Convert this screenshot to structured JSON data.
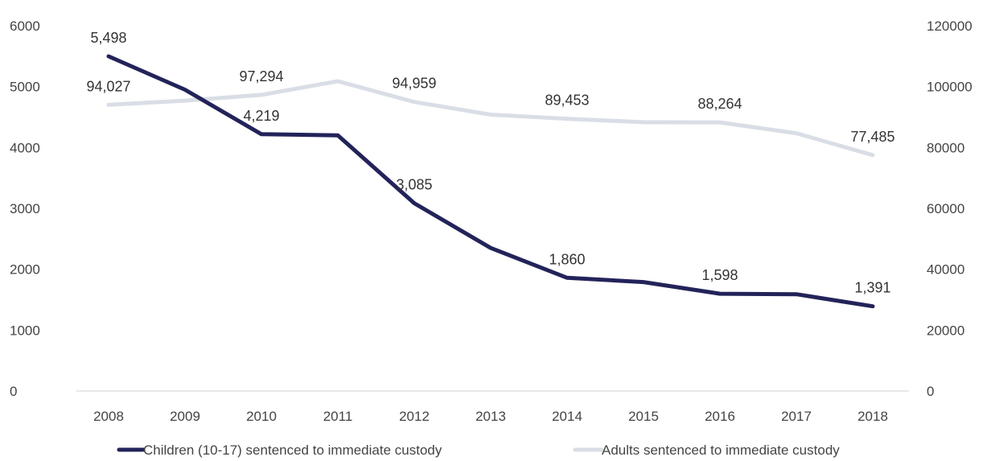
{
  "chart_data": {
    "type": "line",
    "title": "",
    "xlabel": "",
    "ylabel": "",
    "x": [
      "2008",
      "2009",
      "2010",
      "2011",
      "2012",
      "2013",
      "2014",
      "2015",
      "2016",
      "2017",
      "2018"
    ],
    "y_left": {
      "min": 0,
      "max": 6000,
      "ticks": [
        "0",
        "1000",
        "2000",
        "3000",
        "4000",
        "5000",
        "6000"
      ]
    },
    "y_right": {
      "min": 0,
      "max": 120000,
      "ticks": [
        "0",
        "20000",
        "40000",
        "60000",
        "80000",
        "100000",
        "120000"
      ]
    },
    "grid": false,
    "legend_position": "bottom",
    "series": [
      {
        "name": "Children (10-17) sentenced to immediate custody",
        "axis": "left",
        "color": "#23235a",
        "values": [
          5498,
          4950,
          4219,
          4200,
          3085,
          2350,
          1860,
          1790,
          1598,
          1590,
          1391
        ],
        "labels": [
          "5,498",
          "",
          "4,219",
          "",
          "3,085",
          "",
          "1,860",
          "",
          "1,598",
          "",
          "1,391"
        ]
      },
      {
        "name": "Adults sentenced to immediate custody",
        "axis": "right",
        "color": "#d9dee6",
        "values": [
          94027,
          95400,
          97294,
          101800,
          94959,
          90800,
          89453,
          88300,
          88264,
          84700,
          77485
        ],
        "labels": [
          "94,027",
          "",
          "97,294",
          "",
          "94,959",
          "",
          "89,453",
          "",
          "88,264",
          "",
          "77,485"
        ]
      }
    ]
  }
}
